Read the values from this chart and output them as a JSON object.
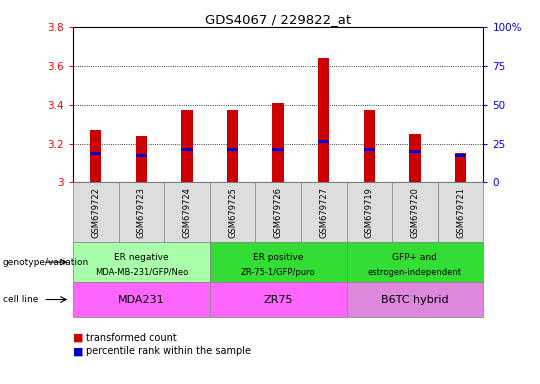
{
  "title": "GDS4067 / 229822_at",
  "samples": [
    "GSM679722",
    "GSM679723",
    "GSM679724",
    "GSM679725",
    "GSM679726",
    "GSM679727",
    "GSM679719",
    "GSM679720",
    "GSM679721"
  ],
  "red_values": [
    3.27,
    3.24,
    3.37,
    3.37,
    3.41,
    3.64,
    3.37,
    3.25,
    3.15
  ],
  "blue_values": [
    3.15,
    3.14,
    3.17,
    3.17,
    3.17,
    3.21,
    3.17,
    3.16,
    3.14
  ],
  "ylim": [
    3.0,
    3.8
  ],
  "yticks": [
    3.0,
    3.2,
    3.4,
    3.6,
    3.8
  ],
  "ytick_labels_left": [
    "3",
    "3.2",
    "3.4",
    "3.6",
    "3.8"
  ],
  "ytick_labels_right": [
    "0",
    "25",
    "50",
    "75",
    "100%"
  ],
  "groups": [
    {
      "label": "ER negative",
      "sublabel": "MDA-MB-231/GFP/Neo",
      "start": 0,
      "end": 3,
      "color": "#AAFFAA"
    },
    {
      "label": "ER positive",
      "sublabel": "ZR-75-1/GFP/puro",
      "start": 3,
      "end": 6,
      "color": "#33DD33"
    },
    {
      "label": "GFP+ and",
      "sublabel": "estrogen-independent",
      "start": 6,
      "end": 9,
      "color": "#33DD33"
    }
  ],
  "cell_lines": [
    {
      "label": "MDA231",
      "start": 0,
      "end": 3,
      "color": "#FF66FF"
    },
    {
      "label": "ZR75",
      "start": 3,
      "end": 6,
      "color": "#FF66FF"
    },
    {
      "label": "B6TC hybrid",
      "start": 6,
      "end": 9,
      "color": "#DD88DD"
    }
  ],
  "bar_width": 0.25,
  "red_color": "#CC0000",
  "blue_color": "#0000CC",
  "sample_box_color": "#DDDDDD"
}
